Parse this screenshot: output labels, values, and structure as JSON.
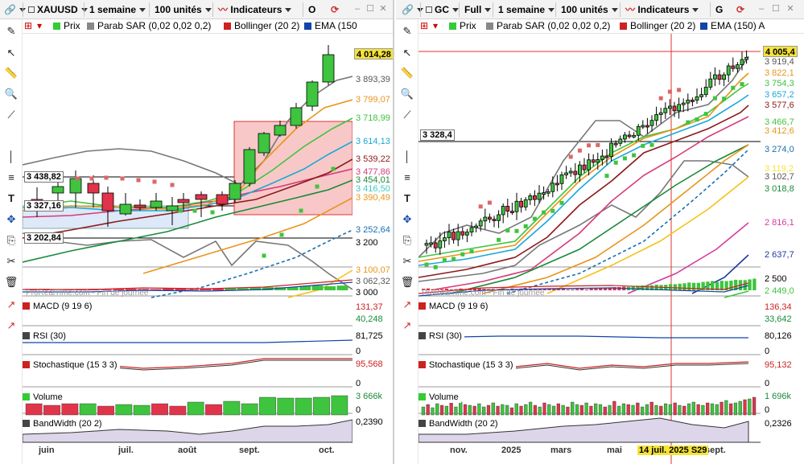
{
  "left": {
    "symbol": "XAUUSD",
    "period": "1 semaine",
    "units": "100 unités",
    "indicators_btn": "Indicateurs",
    "extra_btn": "O",
    "indicator_bar": [
      "Prix",
      "Parab SAR (0,02 0,02 0,2)",
      "Bollinger (20 2)",
      "EMA (150"
    ],
    "price_labels": [
      {
        "t": "4 014,28",
        "c": "#f5e33a",
        "y": 67,
        "box": true
      },
      {
        "t": "3 893,39",
        "c": "#555",
        "y": 99
      },
      {
        "t": "3 799,07",
        "c": "#e8941a",
        "y": 124
      },
      {
        "t": "3 718,99",
        "c": "#3ec43e",
        "y": 147
      },
      {
        "t": "3 614,13",
        "c": "#1aa9d6",
        "y": 176
      },
      {
        "t": "3 539,22",
        "c": "#8b1a1a",
        "y": 198
      },
      {
        "t": "3 477,86",
        "c": "#d63a7a",
        "y": 214
      },
      {
        "t": "3 454,01",
        "c": "#1a8a3a",
        "y": 224
      },
      {
        "t": "3 416,50",
        "c": "#40c8c8",
        "y": 235
      },
      {
        "t": "3 390,49",
        "c": "#e8941a",
        "y": 246
      },
      {
        "t": "3 252,64",
        "c": "#1a6fb0",
        "y": 286
      },
      {
        "t": "3 200",
        "c": "#000",
        "y": 302
      },
      {
        "t": "3 100,07",
        "c": "#e8941a",
        "y": 336
      },
      {
        "t": "3 062,32",
        "c": "#555",
        "y": 350
      },
      {
        "t": "3 000",
        "c": "#000",
        "y": 364
      }
    ],
    "hlines": [
      {
        "t": "3 438,82",
        "y": 220
      },
      {
        "t": "3 327,16",
        "y": 256
      },
      {
        "t": "3 202,84",
        "y": 296
      }
    ],
    "macd": {
      "label": "MACD (9 19 6)",
      "v1": "131,37",
      "v2": "40,248"
    },
    "rsi": {
      "label": "RSI (30)",
      "v1": "81,725",
      "v2": "0"
    },
    "stoch": {
      "label": "Stochastique (15 3 3)",
      "v1": "95,568",
      "v2": "0"
    },
    "volume": {
      "label": "Volume",
      "v1": "3 666k",
      "v2": "0"
    },
    "bw": {
      "label": "BandWidth (20 2)",
      "v1": "0,2390"
    },
    "watermark": "ProRealTime.com - Fin de journée",
    "months": [
      "juin",
      "juil.",
      "août",
      "sept.",
      "oct."
    ]
  },
  "right": {
    "symbol": "GC",
    "period_type": "Full",
    "period": "1 semaine",
    "units": "100 unités",
    "indicators_btn": "Indicateurs",
    "extra_btn": "G",
    "indicator_bar": [
      "Prix",
      "Parab SAR (0,02 0,02 0,2)",
      "Bollinger (20 2)",
      "EMA (150) A"
    ],
    "price_labels": [
      {
        "t": "4 005,4",
        "c": "#f5e33a",
        "y": 64,
        "box": true
      },
      {
        "t": "3 919,4",
        "c": "#555",
        "y": 77
      },
      {
        "t": "3 822,1",
        "c": "#e8941a",
        "y": 91
      },
      {
        "t": "3 754,3",
        "c": "#3ec43e",
        "y": 104
      },
      {
        "t": "3 657,2",
        "c": "#1aa9d6",
        "y": 118
      },
      {
        "t": "3 577,6",
        "c": "#8b1a1a",
        "y": 131
      },
      {
        "t": "3 466,7",
        "c": "#3ec43e",
        "y": 152
      },
      {
        "t": "3 412,6",
        "c": "#e8941a",
        "y": 163
      },
      {
        "t": "3 274,0",
        "c": "#1a6fb0",
        "y": 186
      },
      {
        "t": "3 119,2",
        "c": "#f5e33a",
        "y": 210
      },
      {
        "t": "3 102,7",
        "c": "#555",
        "y": 220
      },
      {
        "t": "3 018,8",
        "c": "#1a8a3a",
        "y": 235
      },
      {
        "t": "2 816,1",
        "c": "#d63aa0",
        "y": 277
      },
      {
        "t": "2 637,7",
        "c": "#1a3aa0",
        "y": 317
      },
      {
        "t": "2 500",
        "c": "#000",
        "y": 347
      },
      {
        "t": "2 449,0",
        "c": "#3ec43e",
        "y": 362
      }
    ],
    "hlines": [
      {
        "t": "3 328,4",
        "y": 168
      }
    ],
    "macd": {
      "label": "MACD (9 19 6)",
      "v1": "136,34",
      "v2": "33,642"
    },
    "rsi": {
      "label": "RSI (30)",
      "v1": "80,126",
      "v2": "0"
    },
    "stoch": {
      "label": "Stochastique (15 3 3)",
      "v1": "95,132",
      "v2": "0"
    },
    "volume": {
      "label": "Volume",
      "v1": "1 696k",
      "v2": "0"
    },
    "bw": {
      "label": "BandWidth (20 2)",
      "v1": "0,2326"
    },
    "watermark": "ProRealTime.com - Fin de journée",
    "months": [
      "nov.",
      "2025",
      "mars",
      "mai",
      "sept."
    ],
    "cursor_date": "14 juil. 2025 S29"
  }
}
